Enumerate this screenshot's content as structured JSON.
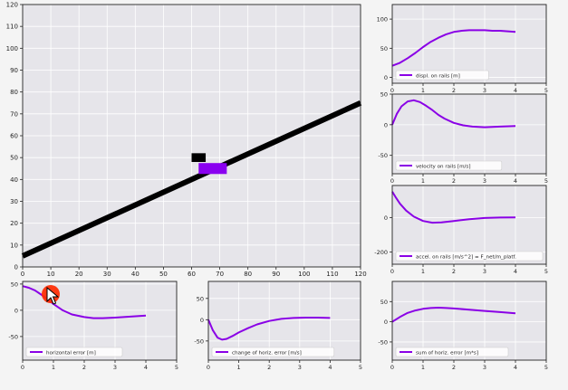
{
  "colors": {
    "figure_bg": "#f4f4f4",
    "axes_bg": "#e6e5ea",
    "grid": "#ffffff",
    "curve": "#8a00e6",
    "rail": "#000000",
    "cart": "#8a00f0",
    "load": "#000000",
    "click_marker": "#ff2000"
  },
  "icons": {
    "cursor": "cursor-icon"
  },
  "chart_data": [
    {
      "id": "main",
      "type": "scatter",
      "title": "",
      "xlabel": "",
      "ylabel": "",
      "xlim": [
        0,
        120
      ],
      "ylim": [
        0,
        120
      ],
      "x_ticks": [
        0,
        10,
        20,
        30,
        40,
        50,
        60,
        70,
        80,
        90,
        100,
        110,
        120
      ],
      "y_ticks": [
        0,
        10,
        20,
        30,
        40,
        50,
        60,
        70,
        80,
        90,
        100,
        110,
        120
      ],
      "grid": true,
      "rail": {
        "x": [
          0,
          120
        ],
        "y": [
          5,
          75
        ]
      },
      "cart": {
        "x": 67.5,
        "y": 45,
        "width": 10,
        "height": 5
      },
      "load": {
        "x": 62.5,
        "y": 50,
        "width": 5,
        "height": 4
      }
    },
    {
      "id": "displ",
      "type": "line",
      "legend": "displ. on rails [m]",
      "xlim": [
        0,
        5
      ],
      "ylim": [
        -10,
        125
      ],
      "x_ticks": [
        0,
        1,
        2,
        3,
        4,
        5
      ],
      "y_ticks": [
        0,
        50,
        100
      ],
      "grid": true,
      "x": [
        0,
        0.25,
        0.5,
        0.75,
        1,
        1.25,
        1.5,
        1.75,
        2,
        2.25,
        2.5,
        2.75,
        3,
        3.25,
        3.5,
        3.75,
        4
      ],
      "y": [
        20,
        25,
        33,
        42,
        52,
        61,
        68,
        74,
        78,
        80,
        81,
        81,
        81,
        80,
        80,
        79,
        78
      ]
    },
    {
      "id": "velocity",
      "type": "line",
      "legend": "velocity on rails [m/s]",
      "xlim": [
        0,
        5
      ],
      "ylim": [
        -80,
        50
      ],
      "x_ticks": [
        0,
        1,
        2,
        3,
        4,
        5
      ],
      "y_ticks": [
        -50,
        0,
        50
      ],
      "grid": true,
      "x": [
        0,
        0.15,
        0.3,
        0.5,
        0.7,
        0.9,
        1.1,
        1.3,
        1.5,
        1.7,
        2,
        2.3,
        2.6,
        3,
        3.5,
        4
      ],
      "y": [
        0,
        18,
        30,
        38,
        40,
        37,
        31,
        24,
        16,
        10,
        3,
        -1,
        -3,
        -4,
        -3,
        -2
      ]
    },
    {
      "id": "accel",
      "type": "line",
      "legend": "accel. on rails [m/s^2] = F_net/m_platf.",
      "xlim": [
        0,
        5
      ],
      "ylim": [
        -270,
        185
      ],
      "x_ticks": [
        0,
        1,
        2,
        3,
        4,
        5
      ],
      "y_ticks": [
        -200,
        0
      ],
      "grid": true,
      "x": [
        0,
        0.1,
        0.25,
        0.45,
        0.7,
        1,
        1.3,
        1.6,
        2,
        2.5,
        3,
        3.5,
        4
      ],
      "y": [
        150,
        120,
        80,
        40,
        5,
        -20,
        -30,
        -28,
        -20,
        -10,
        -3,
        0,
        1
      ]
    },
    {
      "id": "horiz_err",
      "type": "line",
      "legend": "horizontal error [m]",
      "xlim": [
        0,
        5
      ],
      "ylim": [
        -95,
        55
      ],
      "x_ticks": [
        0,
        1,
        2,
        3,
        4,
        5
      ],
      "y_ticks": [
        -50,
        0,
        50
      ],
      "grid": true,
      "x": [
        0,
        0.2,
        0.4,
        0.6,
        0.8,
        1,
        1.3,
        1.6,
        2,
        2.3,
        2.6,
        3,
        3.5,
        4
      ],
      "y": [
        46,
        43,
        38,
        30,
        21,
        12,
        0,
        -8,
        -13,
        -15,
        -15,
        -14,
        -12,
        -10
      ]
    },
    {
      "id": "change_err",
      "type": "line",
      "legend": "change of horiz. error [m/s]",
      "xlim": [
        0,
        5
      ],
      "ylim": [
        -95,
        90
      ],
      "x_ticks": [
        0,
        1,
        2,
        3,
        4,
        5
      ],
      "y_ticks": [
        -50,
        0,
        50
      ],
      "grid": true,
      "x": [
        0,
        0.15,
        0.3,
        0.45,
        0.6,
        0.8,
        1,
        1.3,
        1.6,
        2,
        2.4,
        2.8,
        3.2,
        3.6,
        4
      ],
      "y": [
        0,
        -25,
        -42,
        -47,
        -45,
        -38,
        -30,
        -20,
        -11,
        -3,
        2,
        4,
        5,
        5,
        4
      ]
    },
    {
      "id": "sum_err",
      "type": "line",
      "legend": "sum of horiz. error [m*s]",
      "xlim": [
        0,
        5
      ],
      "ylim": [
        -95,
        100
      ],
      "x_ticks": [
        0,
        1,
        2,
        3,
        4,
        5
      ],
      "y_ticks": [
        -50,
        0,
        50
      ],
      "grid": true,
      "x": [
        0,
        0.25,
        0.5,
        0.75,
        1,
        1.25,
        1.5,
        1.75,
        2,
        2.5,
        3,
        3.5,
        4
      ],
      "y": [
        0,
        12,
        22,
        28,
        32,
        34,
        35,
        34,
        33,
        30,
        27,
        24,
        21
      ]
    }
  ]
}
